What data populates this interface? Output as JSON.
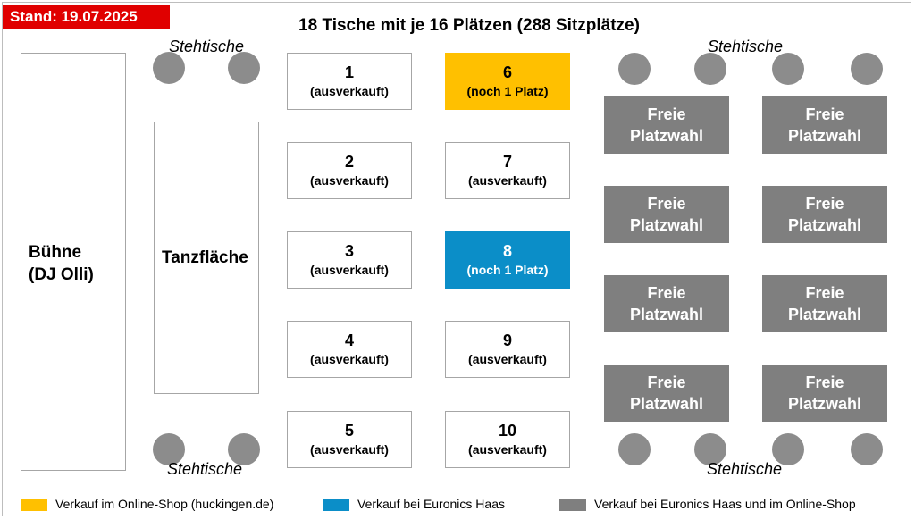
{
  "stand": "Stand: 19.07.2025",
  "title": "18 Tische mit je 16 Plätzen (288 Sitzplätze)",
  "stage": {
    "line1": "Bühne",
    "line2": "(DJ Olli)"
  },
  "dancefloor": "Tanzfläche",
  "standing_label": "Stehtische",
  "tables": [
    {
      "num": "1",
      "status": "(ausverkauft)"
    },
    {
      "num": "2",
      "status": "(ausverkauft)"
    },
    {
      "num": "3",
      "status": "(ausverkauft)"
    },
    {
      "num": "4",
      "status": "(ausverkauft)"
    },
    {
      "num": "5",
      "status": "(ausverkauft)"
    },
    {
      "num": "6",
      "status": "(noch 1 Platz)"
    },
    {
      "num": "7",
      "status": "(ausverkauft)"
    },
    {
      "num": "8",
      "status": "(noch 1 Platz)"
    },
    {
      "num": "9",
      "status": "(ausverkauft)"
    },
    {
      "num": "10",
      "status": "(ausverkauft)"
    }
  ],
  "free_seating": {
    "line1": "Freie",
    "line2": "Platzwahl"
  },
  "legend": [
    {
      "label": "Verkauf im Online-Shop (huckingen.de)",
      "color": "#ffc000"
    },
    {
      "label": "Verkauf bei Euronics Haas",
      "color": "#0b8ec8"
    },
    {
      "label": "Verkauf bei Euronics Haas und im Online-Shop",
      "color": "#7f7f7f"
    }
  ],
  "colors": {
    "stand_bg": "#e00000",
    "table_6": "#ffc000",
    "table_8": "#0b8ec8",
    "free": "#7f7f7f",
    "standing": "#8c8c8c"
  }
}
